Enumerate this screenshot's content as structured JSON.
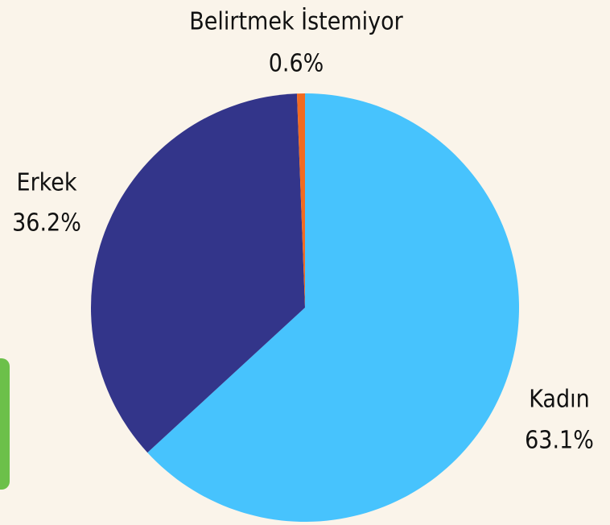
{
  "chart_data": {
    "type": "pie",
    "categories": [
      "Kadın",
      "Erkek",
      "Belirtmek İstemiyor"
    ],
    "values": [
      63.1,
      36.2,
      0.6
    ],
    "value_labels": [
      "63.1%",
      "36.2%",
      "0.6%"
    ],
    "colors": [
      "#47c3fd",
      "#33358a",
      "#f26b21"
    ]
  }
}
